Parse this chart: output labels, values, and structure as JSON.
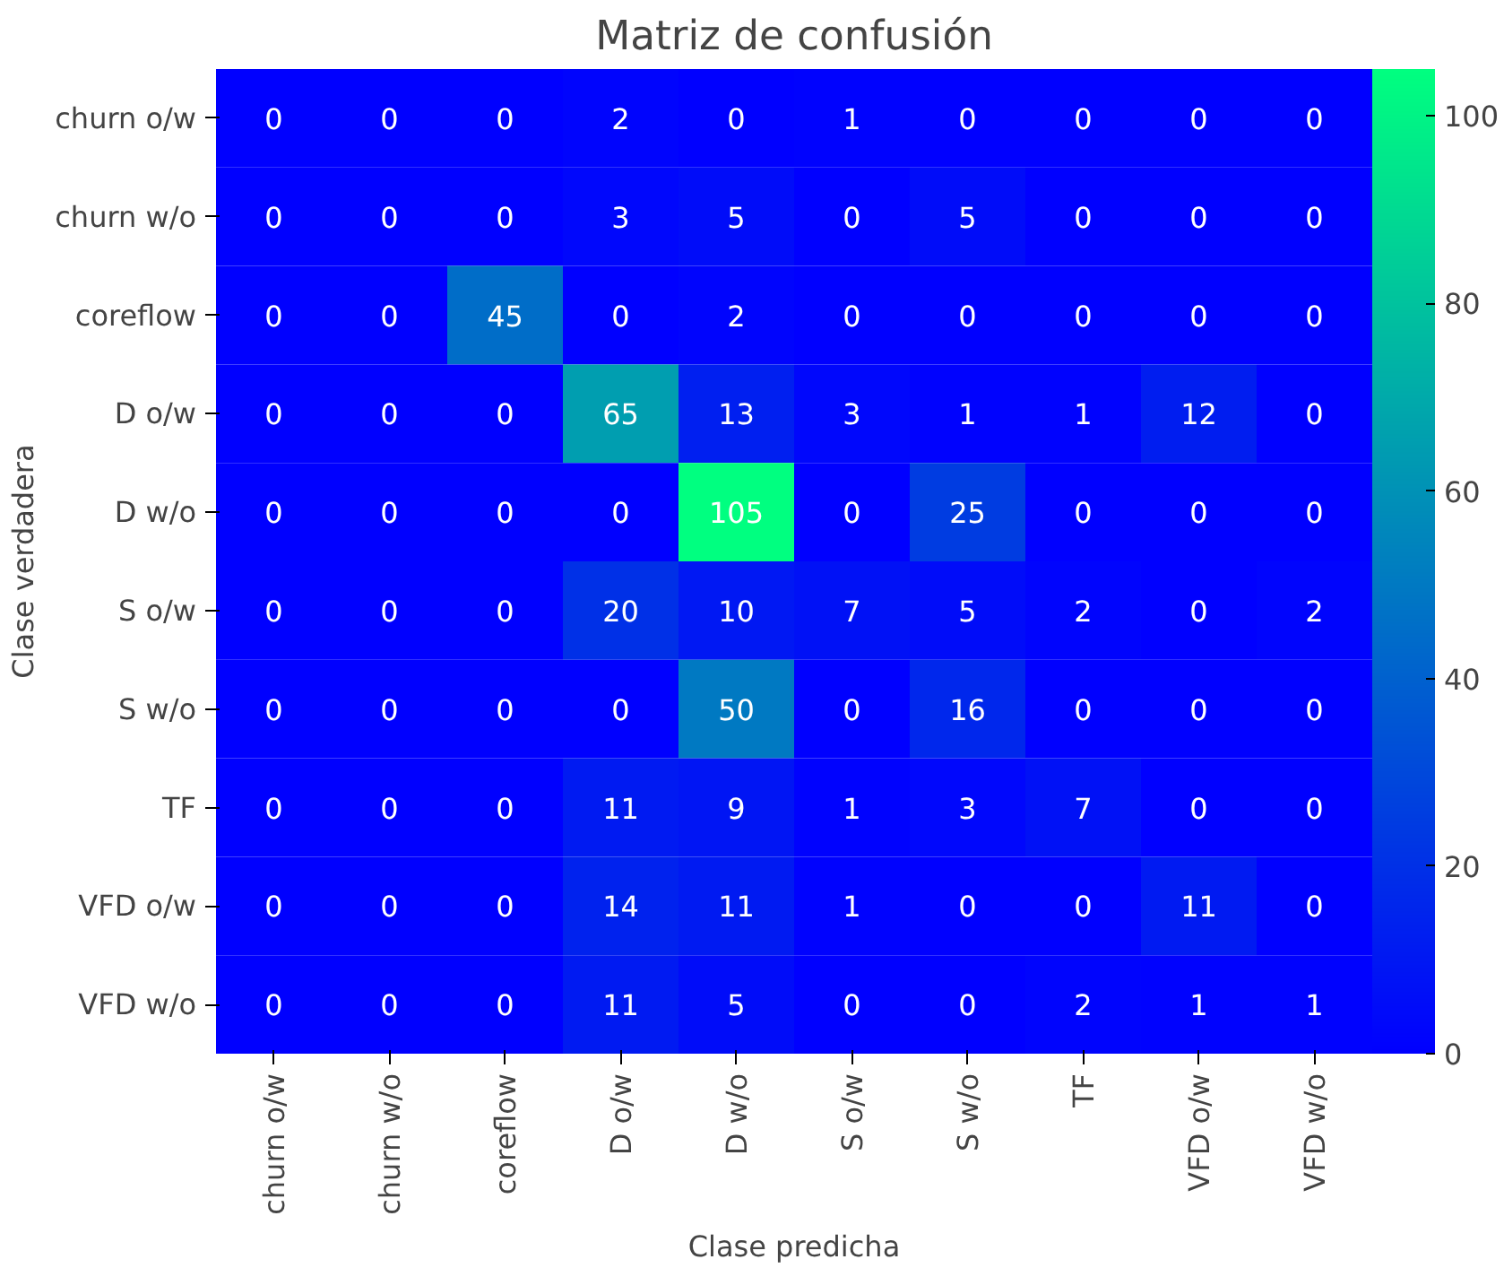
{
  "chart_data": {
    "type": "heatmap",
    "title": "Matriz de confusión",
    "xlabel": "Clase predicha",
    "ylabel": "Clase verdadera",
    "categories": [
      "churn o/w",
      "churn w/o",
      "coreflow",
      "D o/w",
      "D w/o",
      "S o/w",
      "S w/o",
      "TF",
      "VFD o/w",
      "VFD w/o"
    ],
    "y_categories": [
      "churn o/w",
      "churn w/o",
      "coreflow",
      "D o/w",
      "D w/o",
      "S o/w",
      "S w/o",
      "TF",
      "VFD o/w",
      "VFD w/o"
    ],
    "cells": [
      [
        0,
        0,
        0,
        2,
        0,
        1,
        0,
        0,
        0,
        0
      ],
      [
        0,
        0,
        0,
        3,
        5,
        0,
        5,
        0,
        0,
        0
      ],
      [
        0,
        0,
        45,
        0,
        2,
        0,
        0,
        0,
        0,
        0
      ],
      [
        0,
        0,
        0,
        65,
        13,
        3,
        1,
        1,
        12,
        0
      ],
      [
        0,
        0,
        0,
        0,
        105,
        0,
        25,
        0,
        0,
        0
      ],
      [
        0,
        0,
        0,
        20,
        10,
        7,
        5,
        2,
        0,
        2
      ],
      [
        0,
        0,
        0,
        0,
        50,
        0,
        16,
        0,
        0,
        0
      ],
      [
        0,
        0,
        0,
        11,
        9,
        1,
        3,
        7,
        0,
        0
      ],
      [
        0,
        0,
        0,
        14,
        11,
        1,
        0,
        0,
        11,
        0
      ],
      [
        0,
        0,
        0,
        11,
        5,
        0,
        0,
        2,
        1,
        1
      ]
    ],
    "data_labels": true,
    "clim": [
      0,
      105
    ],
    "cticks": [
      0,
      20,
      40,
      60,
      80,
      100
    ]
  }
}
